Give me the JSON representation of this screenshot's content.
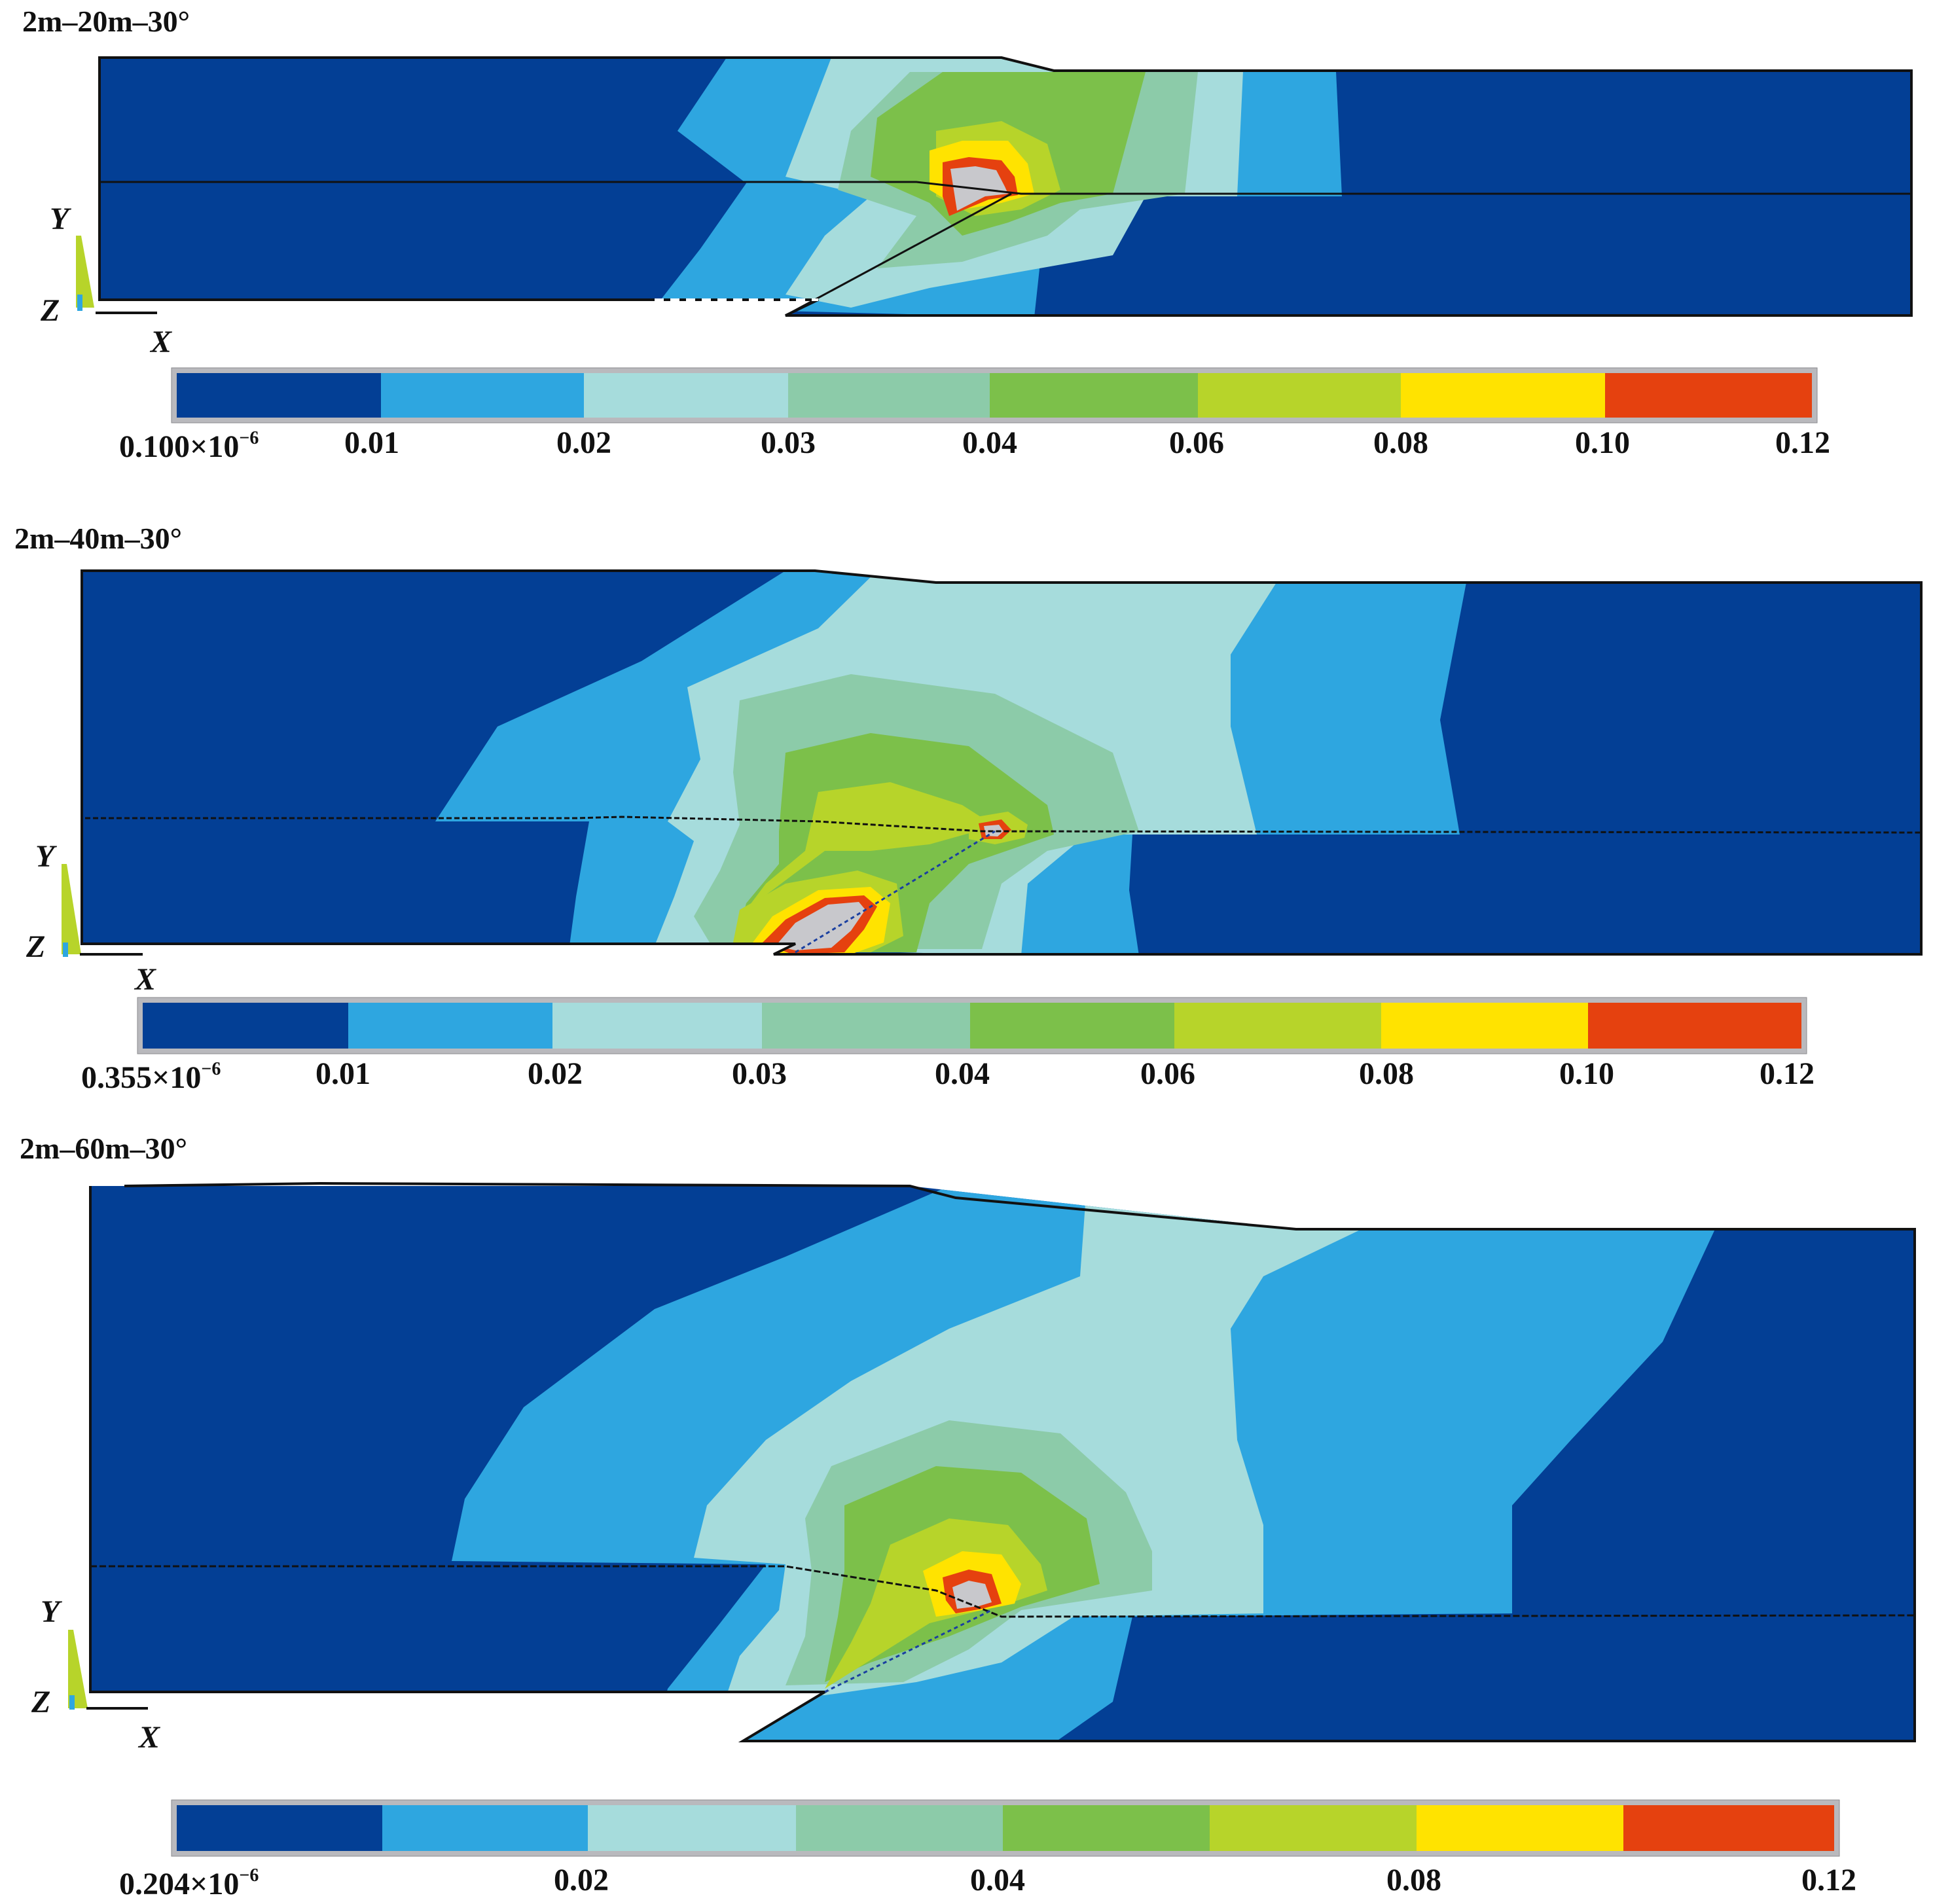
{
  "panels": [
    {
      "title": "2m–20m–30°",
      "axes": {
        "y": "Y",
        "z": "Z",
        "x": "X"
      },
      "legend": {
        "min_label_base": "0.100×10",
        "min_label_exp": "−6",
        "ticks": [
          "0.01",
          "0.02",
          "0.03",
          "0.04",
          "0.06",
          "0.08",
          "0.10",
          "0.12"
        ]
      }
    },
    {
      "title": "2m–40m–30°",
      "axes": {
        "y": "Y",
        "z": "Z",
        "x": "X"
      },
      "legend": {
        "min_label_base": "0.355×10",
        "min_label_exp": "−6",
        "ticks": [
          "0.01",
          "0.02",
          "0.03",
          "0.04",
          "0.06",
          "0.08",
          "0.10",
          "0.12"
        ]
      }
    },
    {
      "title": "2m–60m–30°",
      "axes": {
        "y": "Y",
        "z": "Z",
        "x": "X"
      },
      "legend": {
        "min_label_base": "0.204×10",
        "min_label_exp": "−6",
        "ticks": [
          "0.02",
          "0.04",
          "0.08",
          "0.12"
        ]
      }
    }
  ],
  "colors": {
    "band0": "#033f95",
    "band1": "#2ea6e0",
    "band2": "#a6dcdc",
    "band3": "#8ccba9",
    "band4": "#7cc04a",
    "band5": "#b7d42a",
    "band6": "#ffe300",
    "band7": "#e5410f",
    "core": "#c8c8cc"
  }
}
